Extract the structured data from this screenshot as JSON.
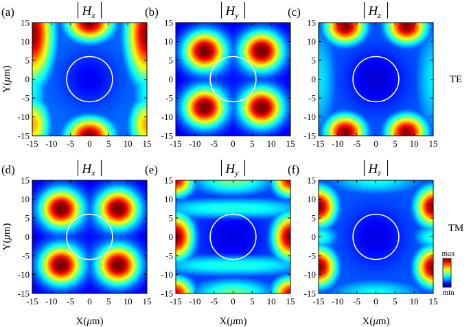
{
  "chart_data": {
    "type": "heatmap",
    "colormap": "jet",
    "xlim": [
      -15,
      15
    ],
    "ylim": [
      -15,
      15
    ],
    "ticks": [
      "-15",
      "-10",
      "-5",
      "0",
      "5",
      "10",
      "15"
    ],
    "xlabel_prefix": "X(",
    "ylabel_prefix": "Y(",
    "unit_mu": "μ",
    "unit_m": "m",
    "label_suffix": ")",
    "circle": {
      "center": [
        0,
        0
      ],
      "radius": 6,
      "color": "#ffffff"
    },
    "colorbar": {
      "max_label": "max",
      "min_label": "min"
    },
    "rows": [
      {
        "label": "TE"
      },
      {
        "label": "TM"
      }
    ],
    "panels": [
      {
        "id": "a",
        "letter": "(a)",
        "component": "H",
        "sub": "x",
        "row": 0,
        "col": 0,
        "pattern": "te_hx"
      },
      {
        "id": "b",
        "letter": "(b)",
        "component": "H",
        "sub": "y",
        "row": 0,
        "col": 1,
        "pattern": "quad"
      },
      {
        "id": "c",
        "letter": "(c)",
        "component": "H",
        "sub": "z",
        "row": 0,
        "col": 2,
        "pattern": "te_hz"
      },
      {
        "id": "d",
        "letter": "(d)",
        "component": "H",
        "sub": "x",
        "row": 1,
        "col": 0,
        "pattern": "quad"
      },
      {
        "id": "e",
        "letter": "(e)",
        "component": "H",
        "sub": "y",
        "row": 1,
        "col": 1,
        "pattern": "tm_hy"
      },
      {
        "id": "f",
        "letter": "(f)",
        "component": "H",
        "sub": "z",
        "row": 1,
        "col": 2,
        "pattern": "tm_hz"
      }
    ]
  }
}
